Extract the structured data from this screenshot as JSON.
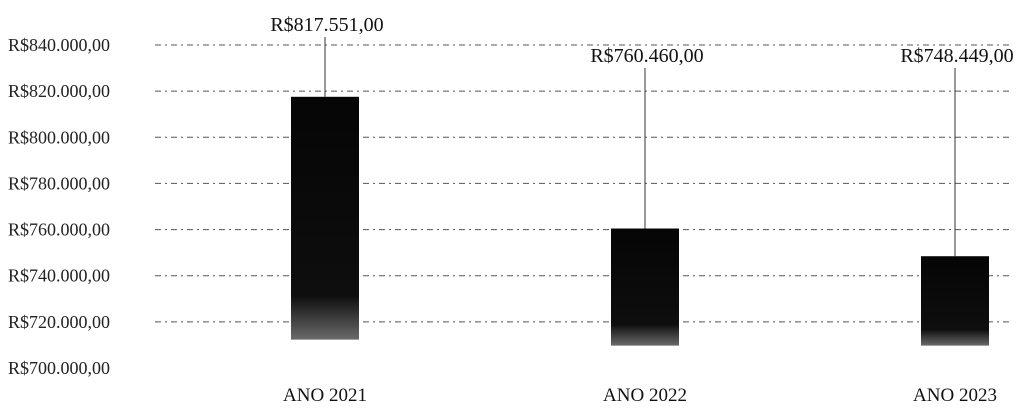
{
  "chart_data": {
    "type": "bar",
    "title": "",
    "xlabel": "",
    "ylabel": "",
    "categories": [
      "ANO 2021",
      "ANO 2022",
      "ANO 2023"
    ],
    "values": [
      817551,
      760460,
      748449
    ],
    "data_labels": [
      "R$817.551,00",
      "R$760.460,00",
      "R$748.449,00"
    ],
    "ylim": [
      700000,
      840000
    ],
    "y_ticks": [
      {
        "value": 840000,
        "label": "R$840.000,00"
      },
      {
        "value": 820000,
        "label": "R$820.000,00"
      },
      {
        "value": 800000,
        "label": "R$800.000,00"
      },
      {
        "value": 780000,
        "label": "R$780.000,00"
      },
      {
        "value": 760000,
        "label": "R$760.000,00"
      },
      {
        "value": 740000,
        "label": "R$740.000,00"
      },
      {
        "value": 720000,
        "label": "R$720.000,00"
      },
      {
        "value": 700000,
        "label": "R$700.000,00"
      }
    ],
    "grid": true,
    "legend": "none",
    "colors": {
      "bar": "#0a0a0a",
      "bar_bottom": "#6a6a6a",
      "grid": "#555555",
      "text": "#111111"
    }
  }
}
